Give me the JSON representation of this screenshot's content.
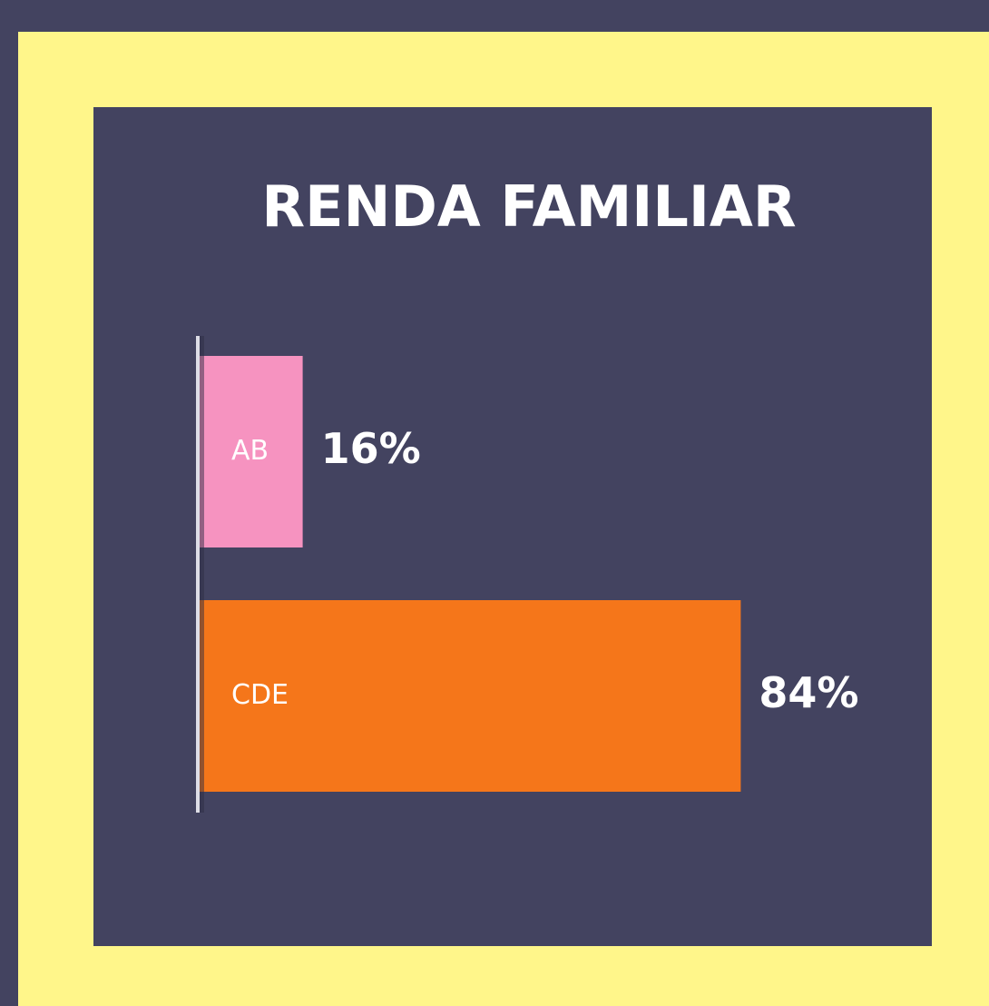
{
  "chart_data": {
    "type": "bar",
    "orientation": "horizontal",
    "title": "RENDA FAMILIAR",
    "categories": [
      "AB",
      "CDE"
    ],
    "values": [
      16,
      84
    ],
    "value_labels": [
      "16%",
      "84%"
    ],
    "colors": [
      "#F693C0",
      "#F5761A"
    ]
  }
}
